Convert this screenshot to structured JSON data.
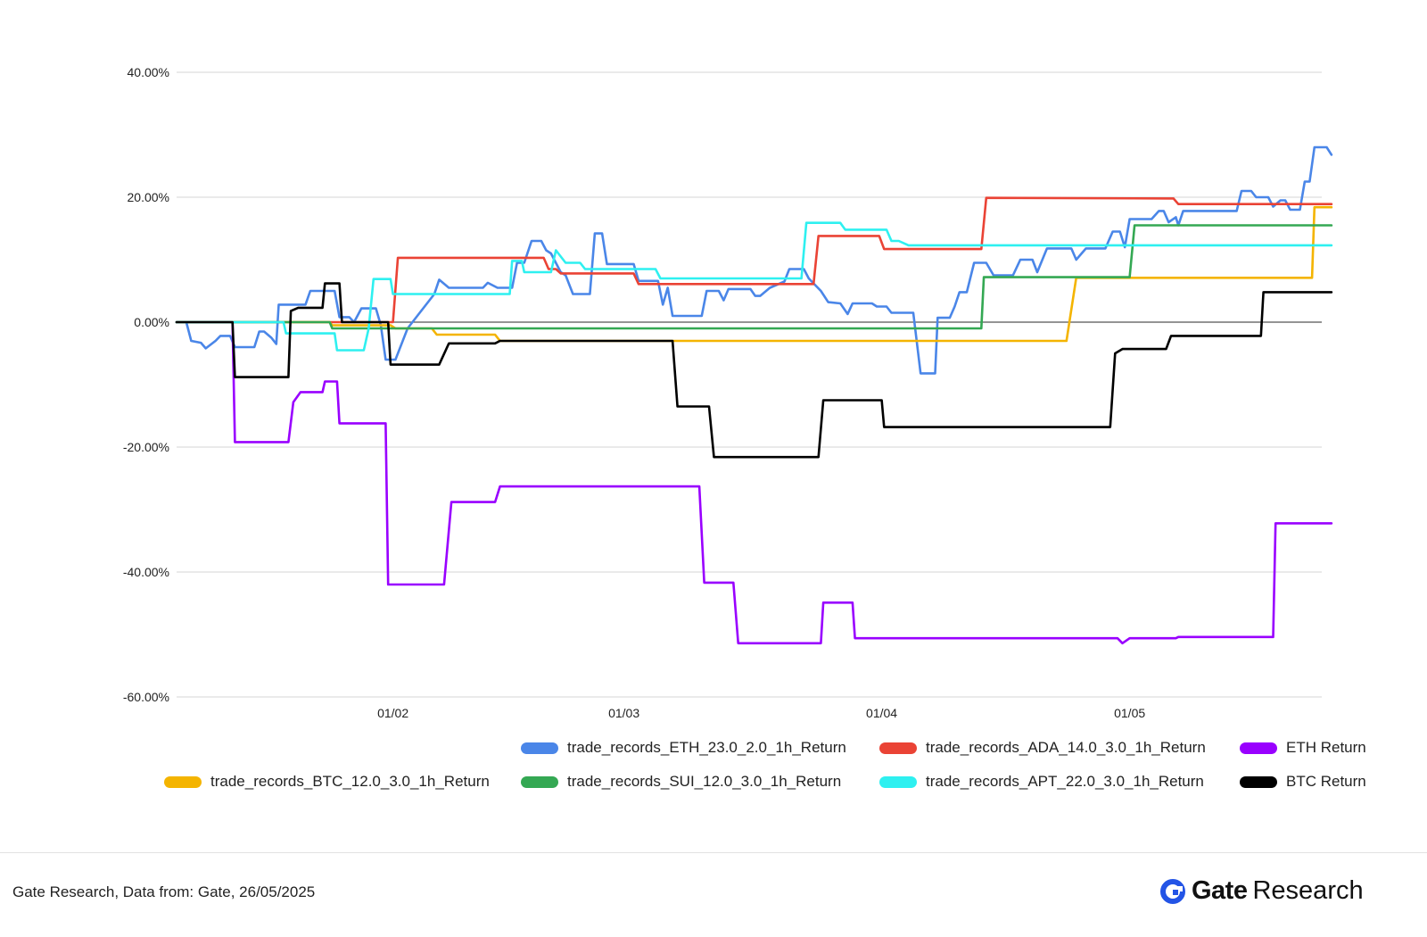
{
  "chart_data": {
    "type": "line",
    "title": "",
    "xlabel": "",
    "ylabel": "",
    "ylim": [
      -60,
      40
    ],
    "yticks": [
      "40.00%",
      "20.00%",
      "0.00%",
      "-20.00%",
      "-40.00%",
      "-60.00%"
    ],
    "ytick_values": [
      40,
      20,
      0,
      -20,
      -40,
      -60
    ],
    "xlim": [
      1.04,
      5.75
    ],
    "xticks": [
      "01/02",
      "01/03",
      "01/04",
      "01/05"
    ],
    "xtick_values": [
      1.93,
      2.88,
      3.94,
      4.96
    ],
    "grid": true,
    "legend_position": "bottom-right",
    "series": [
      {
        "name": "trade_records_ETH_23.0_2.0_1h_Return",
        "color": "#4a86e8",
        "points": [
          [
            1.04,
            0
          ],
          [
            1.08,
            0
          ],
          [
            1.1,
            -3
          ],
          [
            1.14,
            -3.3
          ],
          [
            1.16,
            -4.2
          ],
          [
            1.2,
            -3
          ],
          [
            1.22,
            -2.2
          ],
          [
            1.26,
            -2.2
          ],
          [
            1.28,
            -4
          ],
          [
            1.36,
            -4
          ],
          [
            1.38,
            -1.5
          ],
          [
            1.4,
            -1.5
          ],
          [
            1.43,
            -2.5
          ],
          [
            1.45,
            -3.5
          ],
          [
            1.46,
            2.8
          ],
          [
            1.57,
            2.8
          ],
          [
            1.59,
            5
          ],
          [
            1.69,
            5
          ],
          [
            1.71,
            0.8
          ],
          [
            1.75,
            0.8
          ],
          [
            1.77,
            0
          ],
          [
            1.8,
            2.2
          ],
          [
            1.86,
            2.2
          ],
          [
            1.88,
            -0.5
          ],
          [
            1.9,
            -6
          ],
          [
            1.94,
            -6
          ],
          [
            1.99,
            -1
          ],
          [
            2.04,
            1.5
          ],
          [
            2.1,
            4.5
          ],
          [
            2.12,
            6.8
          ],
          [
            2.16,
            5.5
          ],
          [
            2.3,
            5.5
          ],
          [
            2.32,
            6.3
          ],
          [
            2.36,
            5.5
          ],
          [
            2.42,
            5.5
          ],
          [
            2.44,
            9.5
          ],
          [
            2.47,
            9.5
          ],
          [
            2.5,
            13
          ],
          [
            2.54,
            13
          ],
          [
            2.56,
            11.5
          ],
          [
            2.58,
            11
          ],
          [
            2.62,
            8
          ],
          [
            2.64,
            7.5
          ],
          [
            2.67,
            4.5
          ],
          [
            2.74,
            4.5
          ],
          [
            2.76,
            14.2
          ],
          [
            2.79,
            14.2
          ],
          [
            2.81,
            9.3
          ],
          [
            2.92,
            9.3
          ],
          [
            2.94,
            6.6
          ],
          [
            3.02,
            6.6
          ],
          [
            3.04,
            2.8
          ],
          [
            3.06,
            5.5
          ],
          [
            3.08,
            1
          ],
          [
            3.2,
            1
          ],
          [
            3.22,
            5
          ],
          [
            3.27,
            5
          ],
          [
            3.29,
            3.5
          ],
          [
            3.31,
            5.3
          ],
          [
            3.4,
            5.3
          ],
          [
            3.42,
            4.2
          ],
          [
            3.44,
            4.2
          ],
          [
            3.48,
            5.5
          ],
          [
            3.54,
            6.5
          ],
          [
            3.56,
            8.5
          ],
          [
            3.62,
            8.5
          ],
          [
            3.64,
            7
          ],
          [
            3.69,
            5
          ],
          [
            3.72,
            3.2
          ],
          [
            3.77,
            3
          ],
          [
            3.8,
            1.3
          ],
          [
            3.82,
            3
          ],
          [
            3.9,
            3
          ],
          [
            3.92,
            2.5
          ],
          [
            3.96,
            2.5
          ],
          [
            3.98,
            1.5
          ],
          [
            4.07,
            1.5
          ],
          [
            4.09,
            -5
          ],
          [
            4.1,
            -8.2
          ],
          [
            4.16,
            -8.2
          ],
          [
            4.17,
            0.7
          ],
          [
            4.22,
            0.7
          ],
          [
            4.24,
            2.5
          ],
          [
            4.26,
            4.8
          ],
          [
            4.29,
            4.8
          ],
          [
            4.32,
            9.5
          ],
          [
            4.37,
            9.5
          ],
          [
            4.4,
            7.5
          ],
          [
            4.48,
            7.5
          ],
          [
            4.51,
            10
          ],
          [
            4.56,
            10
          ],
          [
            4.58,
            8
          ],
          [
            4.62,
            11.8
          ],
          [
            4.72,
            11.8
          ],
          [
            4.74,
            10
          ],
          [
            4.78,
            11.8
          ],
          [
            4.86,
            11.8
          ],
          [
            4.89,
            14.5
          ],
          [
            4.92,
            14.5
          ],
          [
            4.94,
            12
          ],
          [
            4.96,
            16.5
          ],
          [
            5.05,
            16.5
          ],
          [
            5.08,
            17.8
          ],
          [
            5.1,
            17.8
          ],
          [
            5.12,
            16
          ],
          [
            5.15,
            16.8
          ],
          [
            5.16,
            15.5
          ],
          [
            5.18,
            17.8
          ],
          [
            5.4,
            17.8
          ],
          [
            5.42,
            21
          ],
          [
            5.46,
            21
          ],
          [
            5.48,
            20
          ],
          [
            5.53,
            20
          ],
          [
            5.55,
            18.5
          ],
          [
            5.58,
            19.5
          ],
          [
            5.6,
            19.5
          ],
          [
            5.62,
            18
          ],
          [
            5.66,
            18
          ],
          [
            5.68,
            22.5
          ],
          [
            5.7,
            22.5
          ],
          [
            5.72,
            28
          ],
          [
            5.77,
            28
          ],
          [
            5.79,
            26.8
          ]
        ]
      },
      {
        "name": "trade_records_ADA_14.0_3.0_1h_Return",
        "color": "#ea4335",
        "points": [
          [
            1.04,
            0
          ],
          [
            1.83,
            0
          ],
          [
            1.93,
            0
          ],
          [
            1.95,
            10.3
          ],
          [
            2.55,
            10.3
          ],
          [
            2.57,
            8.5
          ],
          [
            2.6,
            8.5
          ],
          [
            2.62,
            7.8
          ],
          [
            2.92,
            7.8
          ],
          [
            2.94,
            6.1
          ],
          [
            3.66,
            6.1
          ],
          [
            3.68,
            13.8
          ],
          [
            3.93,
            13.8
          ],
          [
            3.95,
            11.7
          ],
          [
            4.35,
            11.7
          ],
          [
            4.37,
            19.9
          ],
          [
            5.14,
            19.8
          ],
          [
            5.16,
            18.9
          ],
          [
            5.79,
            18.9
          ]
        ]
      },
      {
        "name": "ETH Return",
        "color": "#9900ff",
        "points": [
          [
            1.04,
            0
          ],
          [
            1.27,
            0
          ],
          [
            1.28,
            -19.2
          ],
          [
            1.5,
            -19.2
          ],
          [
            1.52,
            -12.8
          ],
          [
            1.55,
            -11.2
          ],
          [
            1.64,
            -11.2
          ],
          [
            1.65,
            -9.5
          ],
          [
            1.7,
            -9.5
          ],
          [
            1.71,
            -16.2
          ],
          [
            1.9,
            -16.2
          ],
          [
            1.91,
            -42
          ],
          [
            2.14,
            -42
          ],
          [
            2.17,
            -28.8
          ],
          [
            2.35,
            -28.8
          ],
          [
            2.37,
            -26.3
          ],
          [
            3.19,
            -26.3
          ],
          [
            3.21,
            -41.7
          ],
          [
            3.33,
            -41.7
          ],
          [
            3.35,
            -51.4
          ],
          [
            3.69,
            -51.4
          ],
          [
            3.7,
            -44.9
          ],
          [
            3.82,
            -44.9
          ],
          [
            3.83,
            -50.6
          ],
          [
            4.91,
            -50.6
          ],
          [
            4.93,
            -51.4
          ],
          [
            4.96,
            -50.6
          ],
          [
            5.15,
            -50.6
          ],
          [
            5.16,
            -50.4
          ],
          [
            5.55,
            -50.4
          ],
          [
            5.56,
            -32.2
          ],
          [
            5.79,
            -32.2
          ]
        ]
      },
      {
        "name": "trade_records_BTC_12.0_3.0_1h_Return",
        "color": "#f4b400",
        "points": [
          [
            1.04,
            0
          ],
          [
            1.67,
            0
          ],
          [
            1.68,
            -0.5
          ],
          [
            1.92,
            -0.5
          ],
          [
            1.94,
            -1
          ],
          [
            2.09,
            -1
          ],
          [
            2.11,
            -2
          ],
          [
            2.35,
            -2
          ],
          [
            2.37,
            -3
          ],
          [
            4.7,
            -3
          ],
          [
            4.74,
            7.1
          ],
          [
            5.71,
            7.1
          ],
          [
            5.72,
            18.4
          ],
          [
            5.79,
            18.4
          ]
        ]
      },
      {
        "name": "trade_records_SUI_12.0_3.0_1h_Return",
        "color": "#34a853",
        "points": [
          [
            1.04,
            0
          ],
          [
            1.67,
            0
          ],
          [
            1.68,
            -1
          ],
          [
            4.35,
            -1
          ],
          [
            4.36,
            7.2
          ],
          [
            4.96,
            7.2
          ],
          [
            4.98,
            15.5
          ],
          [
            5.79,
            15.5
          ]
        ]
      },
      {
        "name": "trade_records_APT_22.0_3.0_1h_Return",
        "color": "#2ef0f0",
        "points": [
          [
            1.04,
            0
          ],
          [
            1.48,
            0
          ],
          [
            1.49,
            -1.8
          ],
          [
            1.69,
            -1.8
          ],
          [
            1.7,
            -4.5
          ],
          [
            1.81,
            -4.5
          ],
          [
            1.83,
            -1
          ],
          [
            1.85,
            6.9
          ],
          [
            1.92,
            6.9
          ],
          [
            1.93,
            4.5
          ],
          [
            2.41,
            4.5
          ],
          [
            2.42,
            9.8
          ],
          [
            2.46,
            9.8
          ],
          [
            2.47,
            8
          ],
          [
            2.58,
            8
          ],
          [
            2.6,
            11.5
          ],
          [
            2.64,
            9.5
          ],
          [
            2.7,
            9.5
          ],
          [
            2.72,
            8.5
          ],
          [
            3.01,
            8.5
          ],
          [
            3.03,
            7
          ],
          [
            3.61,
            7
          ],
          [
            3.63,
            15.9
          ],
          [
            3.77,
            15.9
          ],
          [
            3.79,
            14.8
          ],
          [
            3.96,
            14.8
          ],
          [
            3.98,
            13
          ],
          [
            4.01,
            13
          ],
          [
            4.05,
            12.3
          ],
          [
            5.79,
            12.3
          ]
        ]
      },
      {
        "name": "BTC Return",
        "color": "#000000",
        "points": [
          [
            1.04,
            0
          ],
          [
            1.27,
            0
          ],
          [
            1.28,
            -8.8
          ],
          [
            1.5,
            -8.8
          ],
          [
            1.51,
            1.8
          ],
          [
            1.54,
            2.3
          ],
          [
            1.64,
            2.3
          ],
          [
            1.65,
            6.2
          ],
          [
            1.71,
            6.2
          ],
          [
            1.72,
            0
          ],
          [
            1.91,
            0
          ],
          [
            1.92,
            -6.8
          ],
          [
            2.12,
            -6.8
          ],
          [
            2.16,
            -3.4
          ],
          [
            2.35,
            -3.4
          ],
          [
            2.37,
            -3
          ],
          [
            3.08,
            -3
          ],
          [
            3.1,
            -13.5
          ],
          [
            3.23,
            -13.5
          ],
          [
            3.25,
            -21.6
          ],
          [
            3.68,
            -21.6
          ],
          [
            3.7,
            -12.5
          ],
          [
            3.94,
            -12.5
          ],
          [
            3.95,
            -16.8
          ],
          [
            4.88,
            -16.8
          ],
          [
            4.9,
            -5
          ],
          [
            4.93,
            -4.3
          ],
          [
            5.11,
            -4.3
          ],
          [
            5.13,
            -2.2
          ],
          [
            5.5,
            -2.2
          ],
          [
            5.51,
            4.8
          ],
          [
            5.79,
            4.8
          ]
        ]
      }
    ]
  },
  "legend": [
    {
      "name": "trade_records_ETH_23.0_2.0_1h_Return",
      "color": "#4a86e8"
    },
    {
      "name": "trade_records_ADA_14.0_3.0_1h_Return",
      "color": "#ea4335"
    },
    {
      "name": "ETH Return",
      "color": "#9900ff"
    },
    {
      "name": "trade_records_BTC_12.0_3.0_1h_Return",
      "color": "#f4b400"
    },
    {
      "name": "trade_records_SUI_12.0_3.0_1h_Return",
      "color": "#34a853"
    },
    {
      "name": "trade_records_APT_22.0_3.0_1h_Return",
      "color": "#2ef0f0"
    },
    {
      "name": "BTC Return",
      "color": "#000000"
    }
  ],
  "footer": {
    "source": "Gate Research, Data from: Gate, 26/05/2025",
    "brand_bold": "Gate",
    "brand_light": "Research",
    "brand_color": "#2354e6"
  }
}
